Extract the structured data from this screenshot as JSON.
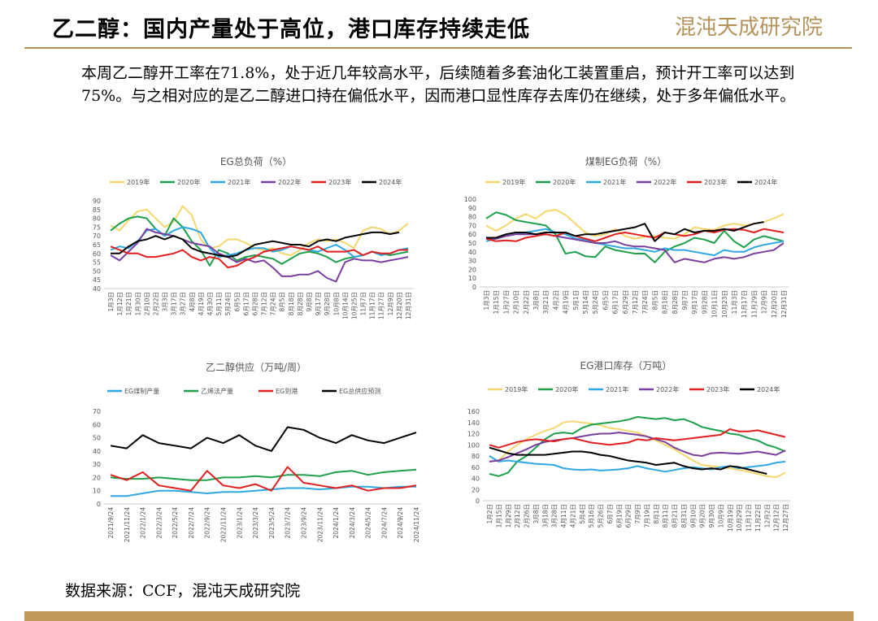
{
  "header": {
    "title": "乙二醇：国内产量处于高位，港口库存持续走低",
    "logo_text": "混沌天成研究院",
    "accent": "#b5925a"
  },
  "body_text": "本周乙二醇开工率在71.8%，处于近几年较高水平，后续随着多套油化工装置重启，预计开工率可以达到75%。与之相对应的是乙二醇进口持在偏低水平，因而港口显性库存去库仍在继续，处于多年偏低水平。",
  "source": "数据来源：CCF，混沌天成研究院",
  "chart_data": [
    {
      "type": "line",
      "title": "EG总负荷（%）",
      "ylim": [
        40,
        90
      ],
      "yticks": [
        40,
        45,
        50,
        55,
        60,
        65,
        70,
        75,
        80,
        85,
        90
      ],
      "x": [
        "1月3日",
        "1月12日",
        "1月21日",
        "1月30日",
        "2月10日",
        "2月22日",
        "3月3日",
        "3月17日",
        "3月27日",
        "4月8日",
        "4月19日",
        "4月30日",
        "5月11日",
        "5月24日",
        "6月5日",
        "6月17日",
        "6月28日",
        "7月12日",
        "7月24日",
        "8月5日",
        "8月18日",
        "8月28日",
        "9月8日",
        "9月17日",
        "9月28日",
        "10月8日",
        "10月14日",
        "10月25日",
        "11月7日",
        "11月17日",
        "11月27日",
        "12月9日",
        "12月20日",
        "12月31日"
      ],
      "series": [
        {
          "name": "2019年",
          "color": "#f5d76e",
          "values": [
            76,
            73,
            79,
            84,
            85,
            80,
            75,
            78,
            87,
            82,
            68,
            63,
            64,
            68,
            68,
            66,
            63,
            62,
            63,
            60,
            59,
            62,
            66,
            68,
            67,
            68,
            66,
            63,
            73,
            75,
            74,
            71,
            73,
            77
          ]
        },
        {
          "name": "2020年",
          "color": "#1ea04a",
          "values": [
            73,
            77,
            80,
            81,
            80,
            74,
            70,
            80,
            75,
            67,
            62,
            53,
            62,
            60,
            56,
            58,
            59,
            58,
            57,
            54,
            57,
            60,
            61,
            60,
            58,
            55,
            57,
            58,
            59,
            61,
            60,
            59,
            60,
            61
          ]
        },
        {
          "name": "2021年",
          "color": "#2ea8e0",
          "values": [
            62,
            64,
            63,
            67,
            73,
            74,
            70,
            73,
            75,
            74,
            72,
            63,
            58,
            59,
            60,
            62,
            63,
            63,
            61,
            62,
            64,
            63,
            62,
            61,
            63,
            65,
            62,
            58,
            59,
            61,
            59,
            60,
            62,
            63
          ]
        },
        {
          "name": "2022年",
          "color": "#7b3fa0",
          "values": [
            59,
            56,
            61,
            66,
            74,
            72,
            71,
            70,
            68,
            66,
            65,
            64,
            60,
            58,
            55,
            57,
            55,
            56,
            52,
            47,
            47,
            48,
            48,
            50,
            46,
            44,
            55,
            57,
            56,
            56,
            55,
            56,
            57,
            58
          ]
        },
        {
          "name": "2023年",
          "color": "#e02020",
          "values": [
            64,
            62,
            60,
            60,
            58,
            58,
            59,
            60,
            62,
            58,
            56,
            58,
            57,
            52,
            53,
            56,
            58,
            61,
            62,
            63,
            64,
            63,
            62,
            64,
            61,
            61,
            61,
            62,
            59,
            61,
            60,
            60,
            62,
            62
          ]
        },
        {
          "name": "2024年",
          "color": "#000000",
          "values": [
            60,
            60,
            64,
            67,
            68,
            70,
            68,
            70,
            68,
            63,
            61,
            60,
            59,
            58,
            59,
            62,
            65,
            66,
            67,
            66,
            65,
            65,
            64,
            67,
            68,
            67,
            69,
            70,
            71,
            72,
            72,
            71,
            72,
            null
          ]
        }
      ]
    },
    {
      "type": "line",
      "title": "煤制EG负荷（%）",
      "ylim": [
        0,
        100
      ],
      "yticks": [
        0,
        10,
        20,
        30,
        40,
        50,
        60,
        70,
        80,
        90,
        100
      ],
      "x": [
        "1月3日",
        "1月15日",
        "1月27日",
        "2月10日",
        "2月22日",
        "3月8日",
        "3月21日",
        "4月2日",
        "4月19日",
        "5月1日",
        "5月14日",
        "5月24日",
        "6月5日",
        "6月17日",
        "6月29日",
        "7月12日",
        "7月24日",
        "8月5日",
        "8月18日",
        "8月28日",
        "9月7日",
        "9月17日",
        "9月28日",
        "10月11日",
        "10月23日",
        "11月3日",
        "11月17日",
        "11月29日",
        "12月9日",
        "12月20日",
        "12月31日"
      ],
      "series": [
        {
          "name": "2019年",
          "color": "#f5d76e",
          "values": [
            70,
            64,
            70,
            78,
            83,
            78,
            86,
            88,
            82,
            72,
            62,
            58,
            60,
            66,
            58,
            55,
            57,
            58,
            56,
            55,
            60,
            68,
            66,
            65,
            70,
            72,
            70,
            72,
            74,
            78,
            83
          ]
        },
        {
          "name": "2020年",
          "color": "#1ea04a",
          "values": [
            78,
            85,
            82,
            76,
            74,
            72,
            70,
            60,
            38,
            40,
            35,
            34,
            46,
            42,
            40,
            38,
            38,
            28,
            40,
            46,
            50,
            56,
            54,
            50,
            64,
            52,
            45,
            54,
            58,
            55,
            52
          ]
        },
        {
          "name": "2021年",
          "color": "#2ea8e0",
          "values": [
            52,
            55,
            58,
            60,
            62,
            64,
            66,
            62,
            60,
            55,
            54,
            50,
            48,
            46,
            44,
            44,
            42,
            40,
            44,
            42,
            42,
            40,
            38,
            36,
            42,
            40,
            40,
            45,
            48,
            50,
            52
          ]
        },
        {
          "name": "2022年",
          "color": "#7b3fa0",
          "values": [
            55,
            55,
            58,
            60,
            60,
            60,
            60,
            58,
            56,
            54,
            52,
            50,
            50,
            52,
            48,
            46,
            46,
            44,
            42,
            28,
            32,
            30,
            28,
            32,
            34,
            32,
            34,
            38,
            40,
            42,
            50
          ]
        },
        {
          "name": "2023年",
          "color": "#e02020",
          "values": [
            55,
            52,
            53,
            52,
            56,
            58,
            60,
            58,
            62,
            58,
            55,
            52,
            56,
            60,
            62,
            60,
            58,
            56,
            62,
            60,
            58,
            60,
            64,
            62,
            65,
            66,
            65,
            62,
            66,
            64,
            62
          ]
        },
        {
          "name": "2024年",
          "color": "#000000",
          "values": [
            56,
            56,
            60,
            62,
            62,
            60,
            62,
            62,
            62,
            58,
            60,
            60,
            62,
            64,
            66,
            68,
            72,
            52,
            62,
            60,
            66,
            62,
            64,
            64,
            66,
            64,
            68,
            72,
            74,
            null,
            null
          ]
        }
      ]
    },
    {
      "type": "line",
      "title": "乙二醇供应（万吨/周）",
      "ylim": [
        0,
        70
      ],
      "yticks": [
        0,
        10,
        20,
        30,
        40,
        50,
        60,
        70
      ],
      "x": [
        "2021/9/24",
        "2021/11/24",
        "2022/1/24",
        "2022/3/24",
        "2022/5/24",
        "2022/7/24",
        "2022/9/24",
        "2022/11/24",
        "2023/1/24",
        "2023/3/24",
        "2023/5/24",
        "2023/7/24",
        "2023/9/24",
        "2023/11/24",
        "2024/1/24",
        "2024/3/24",
        "2024/5/24",
        "2024/7/24",
        "2024/9/24",
        "2024/11/24"
      ],
      "series": [
        {
          "name": "EG煤制产量",
          "color": "#2ea8e0",
          "values": [
            6,
            6,
            8,
            10,
            10,
            9,
            8,
            9,
            9,
            10,
            11,
            12,
            12,
            11,
            12,
            13,
            13,
            12,
            13,
            13
          ]
        },
        {
          "name": "乙烯法产量",
          "color": "#1ea04a",
          "values": [
            20,
            19,
            19,
            20,
            19,
            18,
            18,
            20,
            20,
            21,
            20,
            22,
            22,
            21,
            24,
            25,
            22,
            24,
            25,
            26
          ]
        },
        {
          "name": "EG到港",
          "color": "#e02020",
          "values": [
            22,
            18,
            24,
            14,
            12,
            10,
            25,
            14,
            12,
            15,
            10,
            28,
            16,
            14,
            12,
            14,
            10,
            12,
            12,
            14
          ]
        },
        {
          "name": "EG总供应预测",
          "color": "#000000",
          "values": [
            44,
            42,
            52,
            46,
            44,
            42,
            50,
            46,
            52,
            44,
            40,
            58,
            56,
            50,
            46,
            52,
            48,
            46,
            50,
            54
          ]
        }
      ]
    },
    {
      "type": "line",
      "title": "EG港口库存（万吨）",
      "ylim": [
        0,
        160
      ],
      "yticks": [
        0,
        20,
        40,
        60,
        80,
        100,
        120,
        140,
        160
      ],
      "x": [
        "1月2日",
        "1月15日",
        "1月29日",
        "2月12日",
        "2月26日",
        "3月8日",
        "3月18日",
        "3月28日",
        "4月11日",
        "4月21日",
        "5月4日",
        "5月16日",
        "5月26日",
        "6月7日",
        "6月19日",
        "6月29日",
        "7月9日",
        "7月19日",
        "8月1日",
        "8月11日",
        "8月21日",
        "8月31日",
        "9月10日",
        "9月20日",
        "9月30日",
        "10月9日",
        "10月19日",
        "10月29日",
        "11月12日",
        "11月22日",
        "12月2日",
        "12月12日",
        "12月27日"
      ],
      "series": [
        {
          "name": "2019年",
          "color": "#f5d76e",
          "values": [
            70,
            72,
            88,
            100,
            110,
            118,
            125,
            130,
            140,
            142,
            140,
            138,
            135,
            130,
            128,
            125,
            122,
            115,
            108,
            100,
            92,
            82,
            72,
            64,
            62,
            60,
            58,
            55,
            52,
            48,
            44,
            42,
            50
          ]
        },
        {
          "name": "2020年",
          "color": "#1ea04a",
          "values": [
            48,
            44,
            50,
            70,
            80,
            95,
            110,
            120,
            122,
            120,
            130,
            136,
            138,
            140,
            142,
            145,
            150,
            148,
            146,
            148,
            144,
            146,
            140,
            132,
            128,
            125,
            120,
            118,
            112,
            108,
            100,
            95,
            88
          ]
        },
        {
          "name": "2021年",
          "color": "#2ea8e0",
          "values": [
            80,
            70,
            72,
            70,
            68,
            66,
            65,
            64,
            58,
            56,
            55,
            56,
            54,
            55,
            56,
            58,
            62,
            58,
            55,
            52,
            55,
            58,
            60,
            58,
            56,
            60,
            62,
            58,
            60,
            62,
            64,
            68,
            70
          ]
        },
        {
          "name": "2022年",
          "color": "#7b3fa0",
          "values": [
            70,
            72,
            78,
            85,
            92,
            100,
            105,
            108,
            110,
            112,
            115,
            118,
            120,
            120,
            122,
            120,
            118,
            115,
            110,
            105,
            95,
            88,
            82,
            80,
            85,
            86,
            85,
            84,
            86,
            88,
            85,
            82,
            90
          ]
        },
        {
          "name": "2023年",
          "color": "#e02020",
          "values": [
            100,
            95,
            100,
            105,
            108,
            110,
            108,
            106,
            110,
            112,
            108,
            104,
            102,
            100,
            102,
            104,
            110,
            108,
            112,
            110,
            108,
            110,
            112,
            114,
            116,
            118,
            128,
            124,
            124,
            126,
            122,
            118,
            114
          ]
        },
        {
          "name": "2024年",
          "color": "#000000",
          "values": [
            95,
            90,
            85,
            82,
            82,
            82,
            82,
            84,
            86,
            88,
            88,
            86,
            82,
            80,
            76,
            72,
            70,
            68,
            64,
            66,
            68,
            62,
            58,
            56,
            58,
            56,
            62,
            60,
            56,
            52,
            48,
            null,
            null
          ]
        }
      ]
    }
  ]
}
